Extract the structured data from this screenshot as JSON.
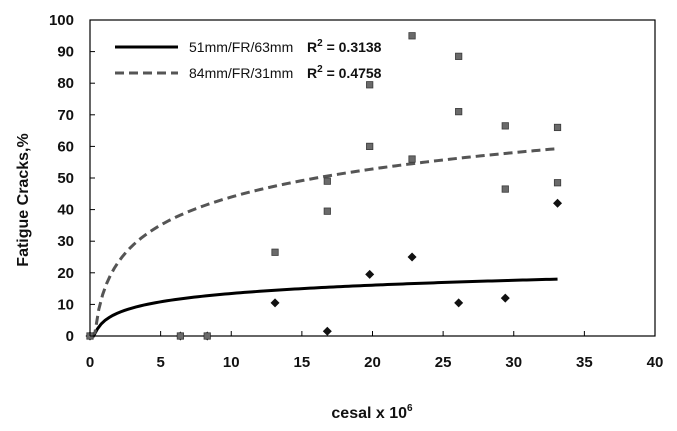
{
  "chart_data": {
    "type": "scatter",
    "xlabel": "cesal x 10",
    "xlabel_superscript": "6",
    "ylabel": "Fatigue Cracks,%",
    "xlim": [
      0,
      40
    ],
    "ylim": [
      0,
      100
    ],
    "x_ticks": [
      "0",
      "5",
      "10",
      "15",
      "20",
      "25",
      "30",
      "35",
      "40"
    ],
    "y_ticks": [
      "0",
      "10",
      "20",
      "30",
      "40",
      "50",
      "60",
      "70",
      "80",
      "90",
      "100"
    ],
    "grid": false,
    "legend_position": "top-left",
    "series": [
      {
        "name": "51mm/FR/63mm",
        "r2_label": "R",
        "r2_value": " = 0.3138",
        "marker": "diamond",
        "trend_style": "solid",
        "color": "#000000",
        "points": [
          {
            "x": 0.0,
            "y": 0.0
          },
          {
            "x": 6.4,
            "y": 0.0
          },
          {
            "x": 8.3,
            "y": 0.0
          },
          {
            "x": 13.1,
            "y": 10.5
          },
          {
            "x": 16.8,
            "y": 1.5
          },
          {
            "x": 19.8,
            "y": 19.5
          },
          {
            "x": 22.8,
            "y": 25.0
          },
          {
            "x": 26.1,
            "y": 10.5
          },
          {
            "x": 29.4,
            "y": 12.0
          },
          {
            "x": 33.1,
            "y": 42.0
          }
        ],
        "trend": {
          "model": "log",
          "a": 4.7,
          "b": 3.8,
          "x_from": 0.25,
          "x_to": 33.1
        }
      },
      {
        "name": "84mm/FR/31mm",
        "r2_label": "R",
        "r2_value": " = 0.4758",
        "marker": "square",
        "trend_style": "dashed",
        "color": "#555555",
        "points": [
          {
            "x": 0.0,
            "y": 0.0
          },
          {
            "x": 6.4,
            "y": 0.0
          },
          {
            "x": 8.3,
            "y": 0.0
          },
          {
            "x": 13.1,
            "y": 26.5
          },
          {
            "x": 16.8,
            "y": 39.5
          },
          {
            "x": 16.8,
            "y": 49.0
          },
          {
            "x": 19.8,
            "y": 60.0
          },
          {
            "x": 19.8,
            "y": 79.5
          },
          {
            "x": 22.8,
            "y": 56.0
          },
          {
            "x": 22.8,
            "y": 95.0
          },
          {
            "x": 26.1,
            "y": 71.0
          },
          {
            "x": 26.1,
            "y": 88.5
          },
          {
            "x": 29.4,
            "y": 46.5
          },
          {
            "x": 29.4,
            "y": 66.5
          },
          {
            "x": 33.1,
            "y": 48.5
          },
          {
            "x": 33.1,
            "y": 66.0
          }
        ],
        "trend": {
          "model": "log",
          "a": 14.5,
          "b": 12.8,
          "x_from": 0.35,
          "x_to": 33.1
        }
      }
    ]
  }
}
